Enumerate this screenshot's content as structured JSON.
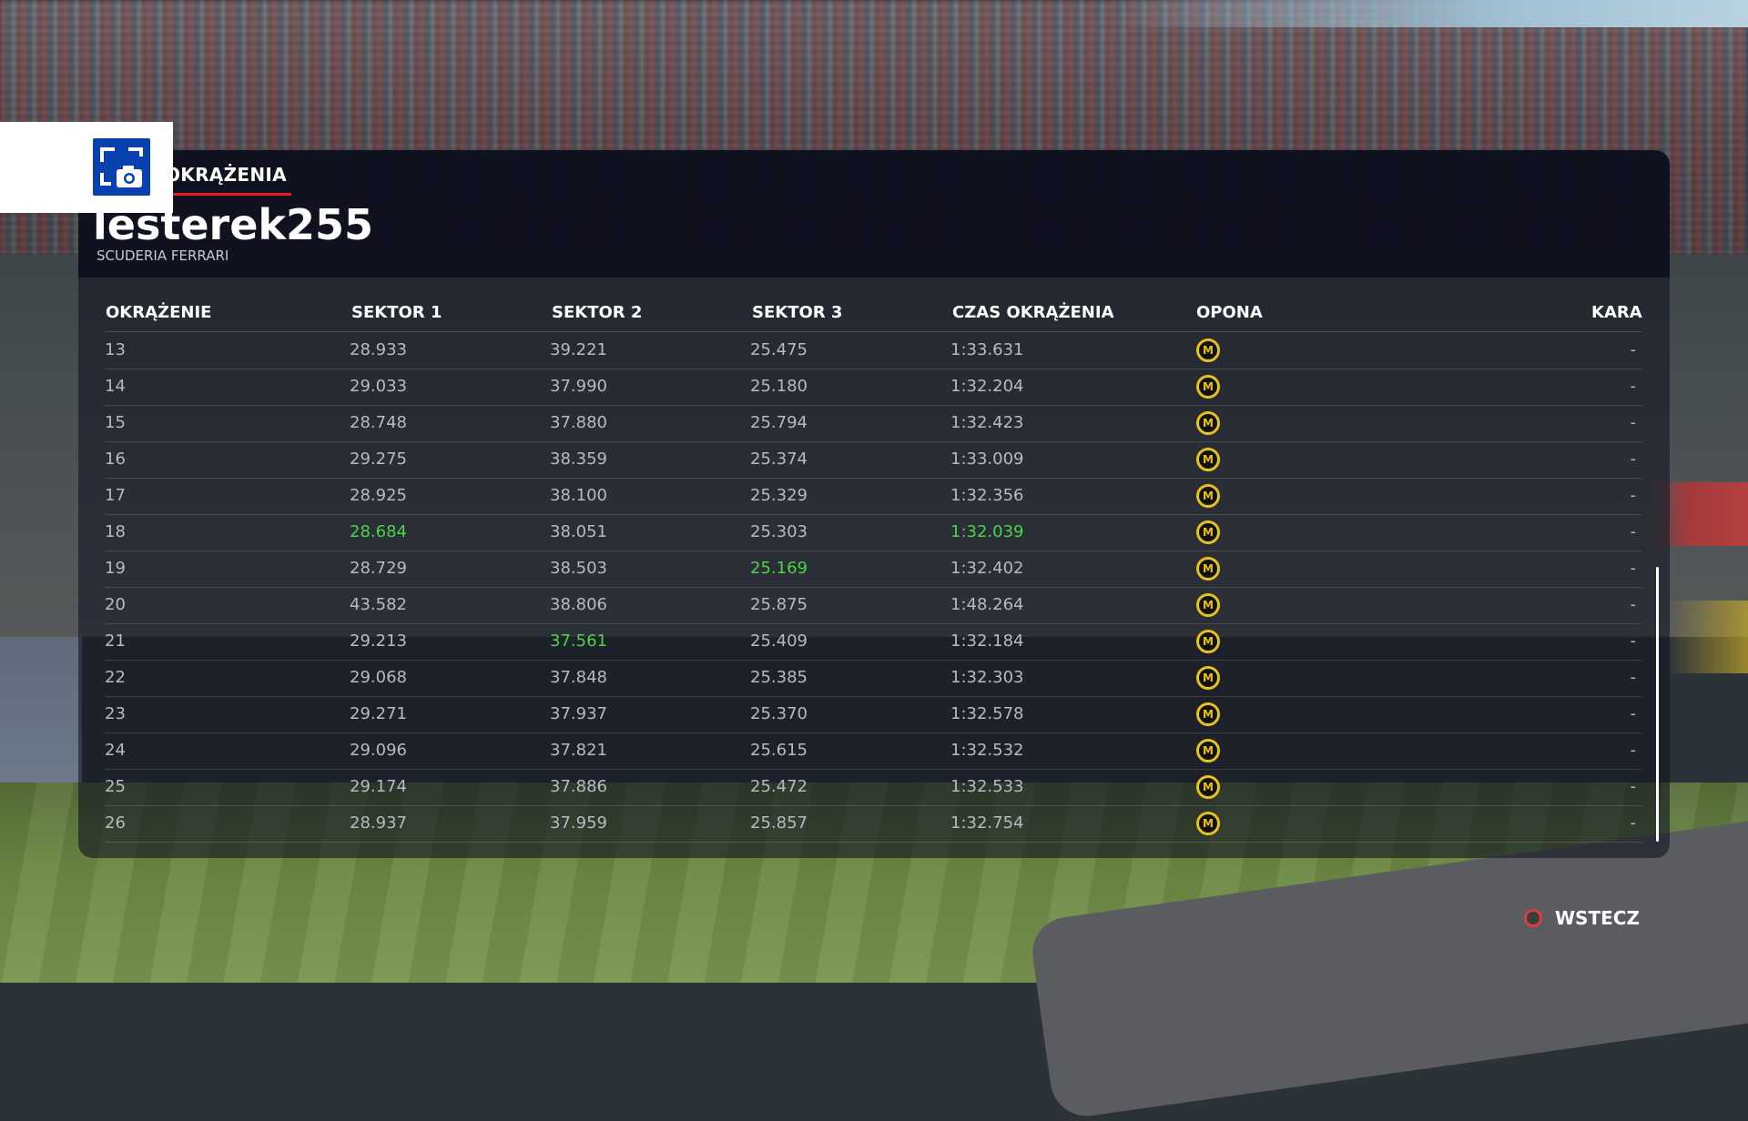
{
  "tab": {
    "label": "OKRĄŻENIA"
  },
  "player": {
    "name": "lesterek255",
    "team": "SCUDERIA FERRARI"
  },
  "table": {
    "headers": {
      "lap": "OKRĄŻENIE",
      "s1": "SEKTOR 1",
      "s2": "SEKTOR 2",
      "s3": "SEKTOR 3",
      "laptime": "CZAS OKRĄŻENIA",
      "tyre": "OPONA",
      "penalty": "KARA"
    },
    "rows": [
      {
        "lap": "13",
        "s1": "28.933",
        "s2": "39.221",
        "s3": "25.475",
        "laptime": "1:33.631",
        "tyre": "M",
        "penalty": "-"
      },
      {
        "lap": "14",
        "s1": "29.033",
        "s2": "37.990",
        "s3": "25.180",
        "laptime": "1:32.204",
        "tyre": "M",
        "penalty": "-"
      },
      {
        "lap": "15",
        "s1": "28.748",
        "s2": "37.880",
        "s3": "25.794",
        "laptime": "1:32.423",
        "tyre": "M",
        "penalty": "-"
      },
      {
        "lap": "16",
        "s1": "29.275",
        "s2": "38.359",
        "s3": "25.374",
        "laptime": "1:33.009",
        "tyre": "M",
        "penalty": "-"
      },
      {
        "lap": "17",
        "s1": "28.925",
        "s2": "38.100",
        "s3": "25.329",
        "laptime": "1:32.356",
        "tyre": "M",
        "penalty": "-"
      },
      {
        "lap": "18",
        "s1": "28.684",
        "s2": "38.051",
        "s3": "25.303",
        "laptime": "1:32.039",
        "tyre": "M",
        "penalty": "-"
      },
      {
        "lap": "19",
        "s1": "28.729",
        "s2": "38.503",
        "s3": "25.169",
        "laptime": "1:32.402",
        "tyre": "M",
        "penalty": "-"
      },
      {
        "lap": "20",
        "s1": "43.582",
        "s2": "38.806",
        "s3": "25.875",
        "laptime": "1:48.264",
        "tyre": "M",
        "penalty": "-"
      },
      {
        "lap": "21",
        "s1": "29.213",
        "s2": "37.561",
        "s3": "25.409",
        "laptime": "1:32.184",
        "tyre": "M",
        "penalty": "-"
      },
      {
        "lap": "22",
        "s1": "29.068",
        "s2": "37.848",
        "s3": "25.385",
        "laptime": "1:32.303",
        "tyre": "M",
        "penalty": "-"
      },
      {
        "lap": "23",
        "s1": "29.271",
        "s2": "37.937",
        "s3": "25.370",
        "laptime": "1:32.578",
        "tyre": "M",
        "penalty": "-"
      },
      {
        "lap": "24",
        "s1": "29.096",
        "s2": "37.821",
        "s3": "25.615",
        "laptime": "1:32.532",
        "tyre": "M",
        "penalty": "-"
      },
      {
        "lap": "25",
        "s1": "29.174",
        "s2": "37.886",
        "s3": "25.472",
        "laptime": "1:32.533",
        "tyre": "M",
        "penalty": "-"
      },
      {
        "lap": "26",
        "s1": "28.937",
        "s2": "37.959",
        "s3": "25.857",
        "laptime": "1:32.754",
        "tyre": "M",
        "penalty": "-"
      }
    ],
    "best": {
      "s1": "28.684",
      "s2": "37.561",
      "s3": "25.169",
      "laptime": "1:32.039"
    }
  },
  "footer": {
    "back_label": "WSTECZ",
    "back_icon": "circle-button-icon"
  },
  "overlay": {
    "icon": "screenshot-icon"
  },
  "colors": {
    "best": "#4ed24a",
    "accent": "#e0201b",
    "tyre_medium": "#e8c21c",
    "back_icon": "#e23a3a"
  }
}
